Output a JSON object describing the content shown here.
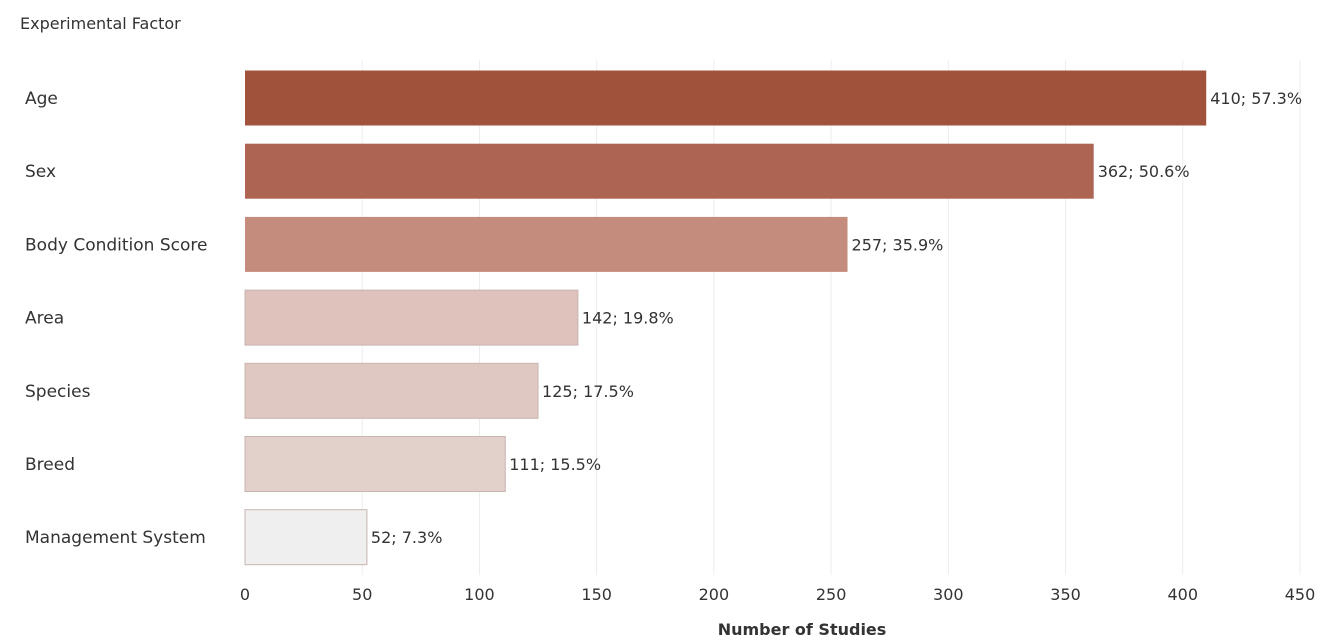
{
  "chart_data": {
    "type": "bar",
    "orientation": "horizontal",
    "row_header": "Experimental Factor",
    "xlabel": "Number of Studies",
    "categories": [
      "Age",
      "Sex",
      "Body Condition Score",
      "Area",
      "Species",
      "Breed",
      "Management System"
    ],
    "values": [
      410,
      362,
      257,
      142,
      125,
      111,
      52
    ],
    "percentages": [
      57.3,
      50.6,
      35.9,
      19.8,
      17.5,
      15.5,
      7.3
    ],
    "data_labels": [
      "410; 57.3%",
      "362; 50.6%",
      "257; 35.9%",
      "142; 19.8%",
      "125; 17.5%",
      "111; 15.5%",
      "52; 7.3%"
    ],
    "bar_colors": [
      "#a0523a",
      "#ad6452",
      "#c48c7c",
      "#dfc2bc",
      "#e0c8c2",
      "#e2d0cb",
      "#efefef"
    ],
    "xlim": [
      0,
      450
    ],
    "xticks": [
      0,
      50,
      100,
      150,
      200,
      250,
      300,
      350,
      400,
      450
    ],
    "grid": true,
    "legend": "none"
  }
}
